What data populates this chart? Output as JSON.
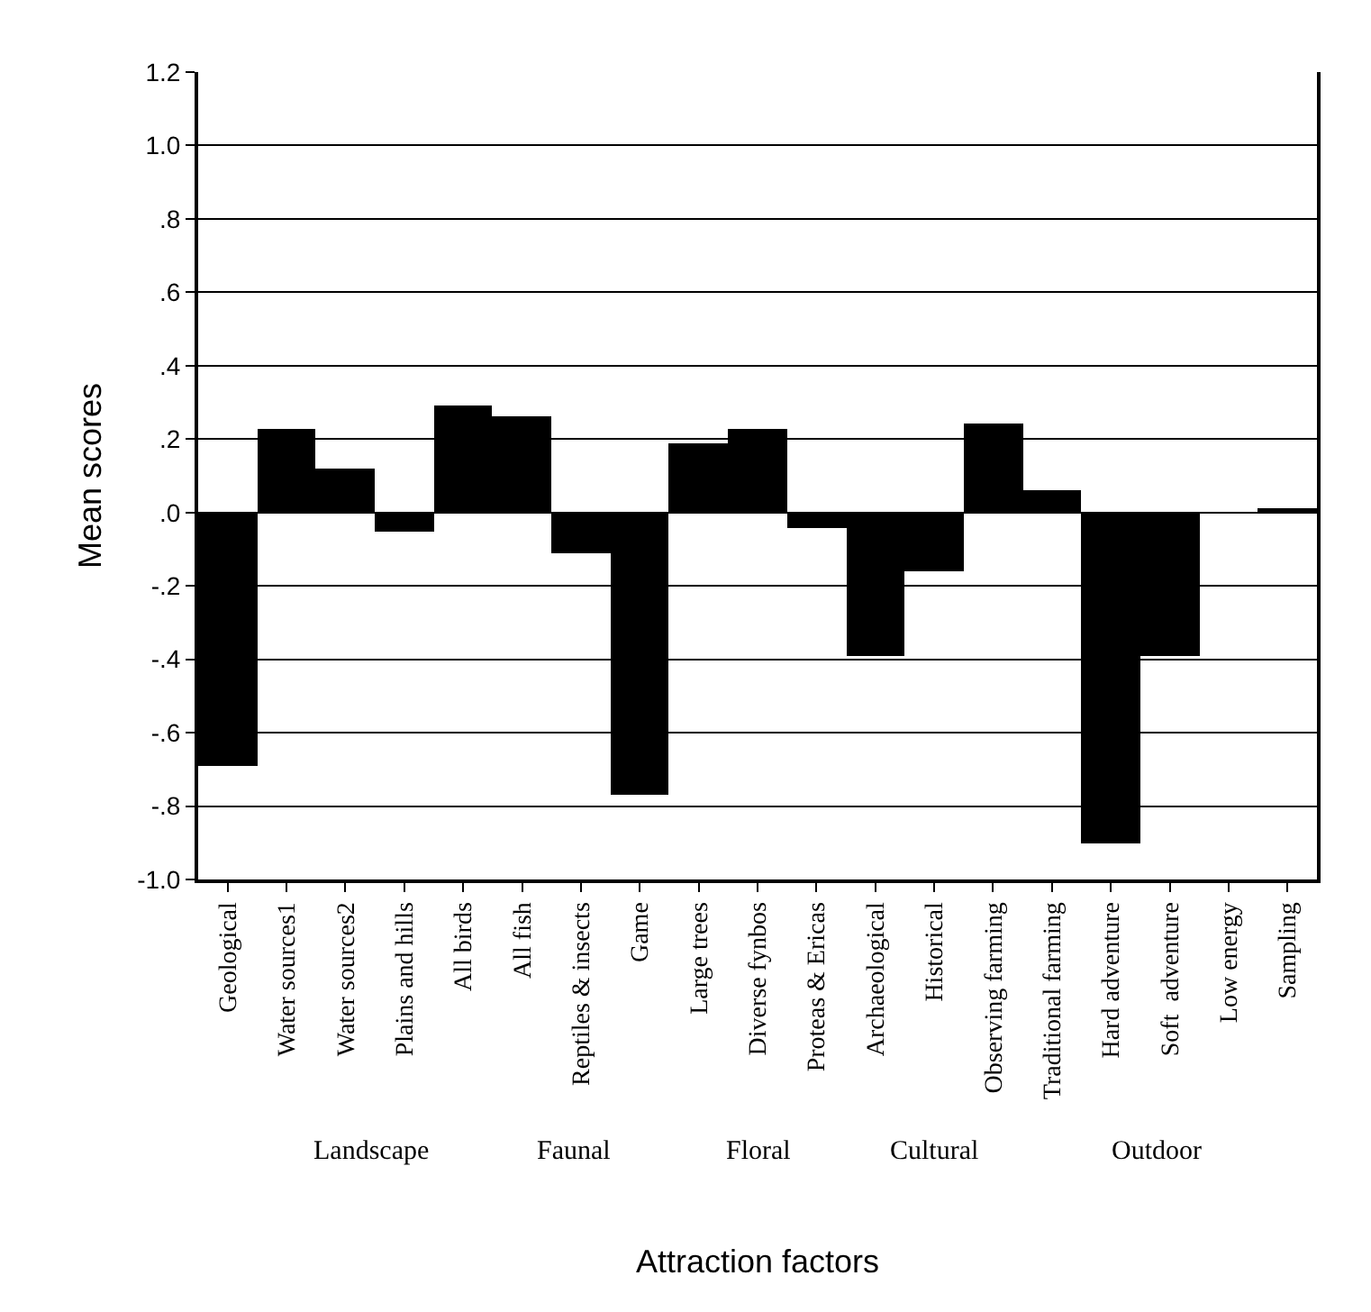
{
  "chart_data": {
    "type": "bar",
    "xlabel": "Attraction factors",
    "ylabel": "Mean scores",
    "categories": [
      "Geological",
      "Water sources1",
      "Water sources2",
      "Plains and hills",
      "All birds",
      "All fish",
      "Reptiles & insects",
      "Game",
      "Large trees",
      "Diverse fynbos",
      "Proteas & Ericas",
      "Archaeological",
      "Historical",
      "Observing farming",
      "Traditional farming",
      "Hard adventure",
      "Soft  adventure",
      "Low energy",
      "Sampling"
    ],
    "values": [
      -0.69,
      0.23,
      0.12,
      -0.05,
      0.29,
      0.26,
      -0.11,
      -0.77,
      0.19,
      0.23,
      -0.04,
      -0.39,
      -0.16,
      0.24,
      0.06,
      -0.9,
      -0.39,
      0.0,
      0.01
    ],
    "color": "#000000",
    "ylim": [
      -1.0,
      1.2
    ],
    "yticks": [
      {
        "value": -1.0,
        "label": "-1.0"
      },
      {
        "value": -0.8,
        "label": "-.8"
      },
      {
        "value": -0.6,
        "label": "-.6"
      },
      {
        "value": -0.4,
        "label": "-.4"
      },
      {
        "value": -0.2,
        "label": "-.2"
      },
      {
        "value": 0.0,
        "label": ".0"
      },
      {
        "value": 0.2,
        "label": ".2"
      },
      {
        "value": 0.4,
        "label": ".4"
      },
      {
        "value": 0.6,
        "label": ".6"
      },
      {
        "value": 0.8,
        "label": ".8"
      },
      {
        "value": 1.0,
        "label": "1.0"
      },
      {
        "value": 1.2,
        "label": "1.2"
      }
    ],
    "grid": "y",
    "annotations": [
      "Landscape",
      "Faunal",
      "Floral",
      "Cultural",
      "Outdoor"
    ]
  }
}
